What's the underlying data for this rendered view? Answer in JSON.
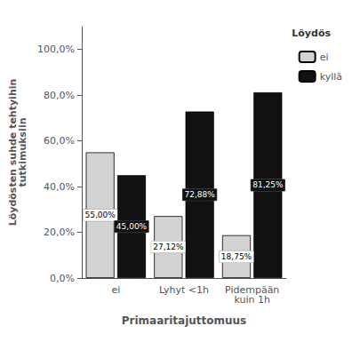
{
  "chart_data": {
    "type": "bar",
    "categories": [
      "ei",
      "Lyhyt <1h",
      "Pidempään\nkuin 1h"
    ],
    "series": [
      {
        "name": "ei",
        "color": "#d3d3d3",
        "values": [
          55.0,
          27.12,
          18.75
        ],
        "value_labels": [
          "55,00%",
          "27,12%",
          "18,75%"
        ]
      },
      {
        "name": "kyllä",
        "color": "#111111",
        "values": [
          45.0,
          72.88,
          81.25
        ],
        "value_labels": [
          "45,00%",
          "72,88%",
          "81,25%"
        ]
      }
    ],
    "xlabel": "Primaaritajuttomuus",
    "ylabel": "Löydösten suhde tehtyihin\ntutkimuksiin",
    "legend_title": "Löydös",
    "legend": "upper right",
    "ylim": [
      0,
      110
    ],
    "yticks": [
      {
        "value": 0,
        "label": "0,0%"
      },
      {
        "value": 20,
        "label": "20,0%"
      },
      {
        "value": 40,
        "label": "40,0%"
      },
      {
        "value": 60,
        "label": "60,0%"
      },
      {
        "value": 80,
        "label": "80,0%"
      },
      {
        "value": 100,
        "label": "100,0%"
      }
    ],
    "grid": false,
    "data_labels": true
  }
}
